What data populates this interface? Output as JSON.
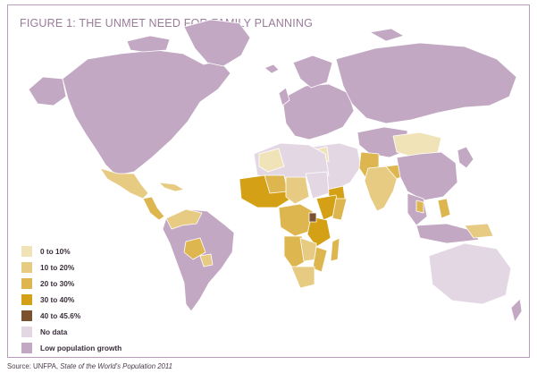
{
  "title": "FIGURE 1: THE UNMET NEED FOR FAMILY PLANNING",
  "legend": [
    {
      "label": "0 to 10%",
      "color": "#f1e3b8"
    },
    {
      "label": "10 to 20%",
      "color": "#e7cb83"
    },
    {
      "label": "20 to 30%",
      "color": "#deb64f"
    },
    {
      "label": "30 to 40%",
      "color": "#d4a116"
    },
    {
      "label": "40 to 45.6%",
      "color": "#7a5230"
    },
    {
      "label": "No data",
      "color": "#e4d7e4"
    },
    {
      "label": "Low population growth",
      "color": "#c3a8c3"
    }
  ],
  "source": {
    "prefix": "Source: UNFPA, ",
    "italic": "State of the World's Population 2011"
  }
}
